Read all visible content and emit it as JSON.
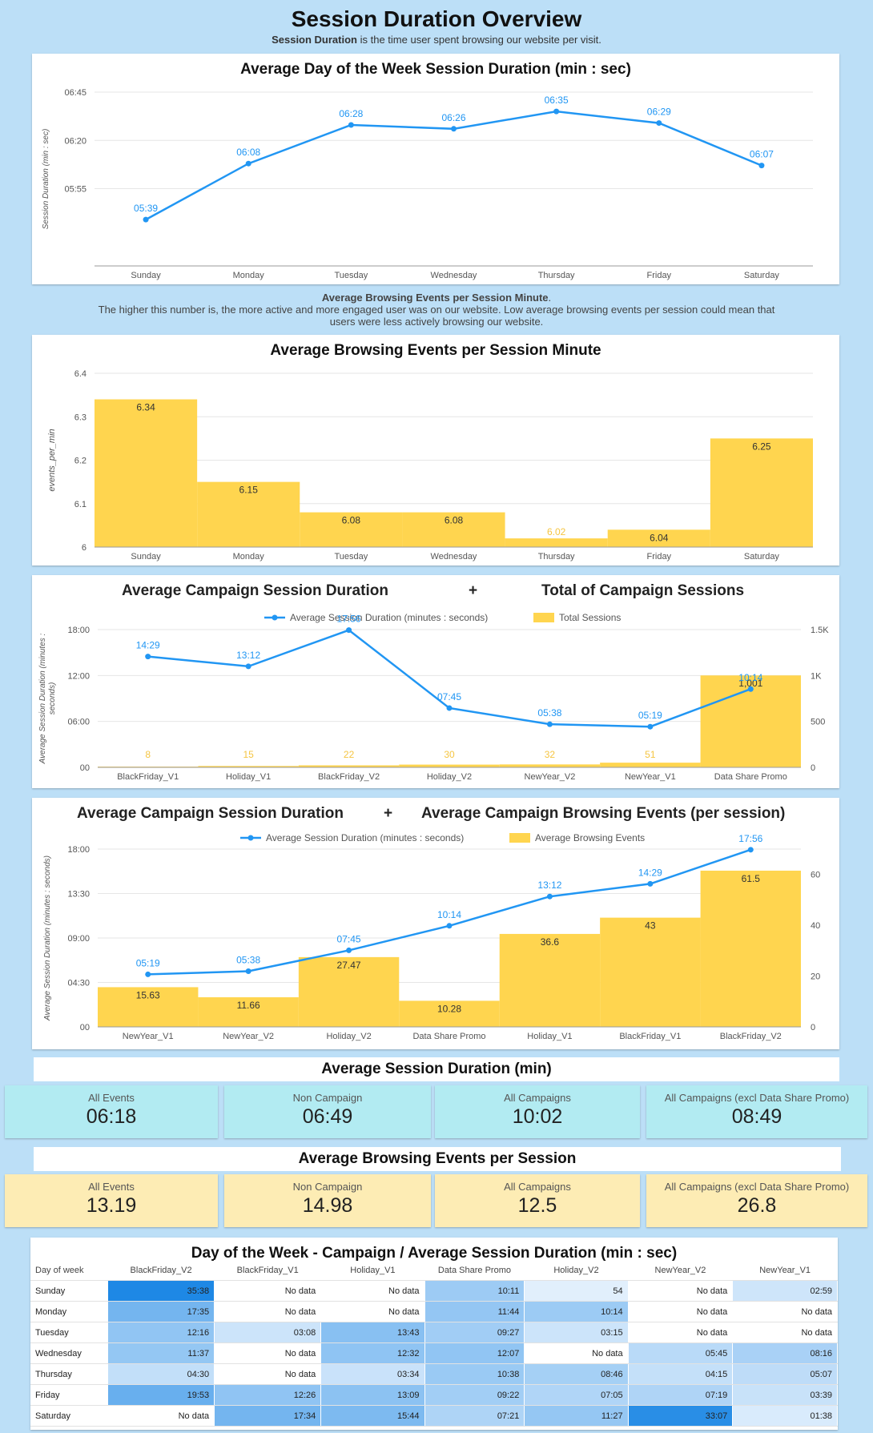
{
  "header": {
    "title": "Session Duration Overview",
    "subtitle_bold": "Session Duration",
    "subtitle_rest": " is the time user spent browsing our website per visit."
  },
  "charts": {
    "dow_duration": {
      "title": "Average Day of the Week Session Duration (min : sec)"
    },
    "events_per_min": {
      "title": "Average Browsing Events per Session Minute"
    },
    "campaign_sessions": {
      "title_left": "Average Campaign Session Duration",
      "plus": "+",
      "title_right": "Total of Campaign Sessions"
    },
    "campaign_events": {
      "title_left": "Average Campaign Session Duration",
      "plus": "+",
      "title_right": "Average Campaign Browsing Events (per session)"
    }
  },
  "note": {
    "bold": "Average Browsing Events per Session Minute",
    "line1": "The higher this number is, the more active and more engaged user was on our website. Low average browsing events per session could mean that",
    "line2": "users were less actively browsing our website."
  },
  "chart_data": [
    {
      "type": "line",
      "title": "Average Day of the Week Session Duration (min : sec)",
      "ylabel": "Session Duration (min : sec)",
      "categories": [
        "Sunday",
        "Monday",
        "Tuesday",
        "Wednesday",
        "Thursday",
        "Friday",
        "Saturday"
      ],
      "values_seconds": [
        339,
        368,
        388,
        386,
        395,
        389,
        367
      ],
      "labels": [
        "05:39",
        "06:08",
        "06:28",
        "06:26",
        "06:35",
        "06:29",
        "06:07"
      ],
      "ylim_seconds": [
        315,
        405
      ],
      "yticks": [
        "06:45",
        "06:20",
        "05:55"
      ],
      "color": "#2196f3"
    },
    {
      "type": "bar",
      "title": "Average Browsing Events per Session Minute",
      "ylabel": "events_per_min",
      "categories": [
        "Sunday",
        "Monday",
        "Tuesday",
        "Wednesday",
        "Thursday",
        "Friday",
        "Saturday"
      ],
      "values": [
        6.34,
        6.15,
        6.08,
        6.08,
        6.02,
        6.04,
        6.25
      ],
      "value_labels": [
        "6.34",
        "6.15",
        "6.08",
        "6.08",
        "6.02",
        "6.04",
        "6.25"
      ],
      "ylim": [
        6,
        6.4
      ],
      "yticks": [
        "6.4",
        "6.3",
        "6.2",
        "6.1",
        "6"
      ],
      "color": "#ffd54f"
    },
    {
      "type": "bar+line",
      "ylabel_left": "Average Session Duration (minutes : seconds)",
      "legend": [
        "Average Session Duration (minutes : seconds)",
        "Total Sessions"
      ],
      "categories": [
        "BlackFriday_V1",
        "Holiday_V1",
        "BlackFriday_V2",
        "Holiday_V2",
        "NewYear_V2",
        "NewYear_V1",
        "Data Share Promo"
      ],
      "line_seconds": [
        869,
        792,
        1076,
        465,
        338,
        319,
        614
      ],
      "line_labels": [
        "14:29",
        "13:12",
        "17:56",
        "07:45",
        "05:38",
        "05:19",
        "10:14"
      ],
      "bars": [
        8,
        15,
        22,
        30,
        32,
        51,
        1001
      ],
      "bar_labels": [
        "8",
        "15",
        "22",
        "30",
        "32",
        "51",
        "1,001"
      ],
      "left_ticks": [
        "18:00",
        "12:00",
        "06:00",
        "00"
      ],
      "right_ticks": [
        "1.5K",
        "1K",
        "500",
        "0"
      ],
      "left_max_seconds": 1080,
      "right_max": 1500
    },
    {
      "type": "bar+line",
      "ylabel_left": "Average Session Duration (minutes : seconds)",
      "legend": [
        "Average Session Duration (minutes : seconds)",
        "Average Browsing Events"
      ],
      "categories": [
        "NewYear_V1",
        "NewYear_V2",
        "Holiday_V2",
        "Data Share Promo",
        "Holiday_V1",
        "BlackFriday_V1",
        "BlackFriday_V2"
      ],
      "line_seconds": [
        319,
        338,
        465,
        614,
        792,
        869,
        1076
      ],
      "line_labels": [
        "05:19",
        "05:38",
        "07:45",
        "10:14",
        "13:12",
        "14:29",
        "17:56"
      ],
      "bars": [
        15.63,
        11.66,
        27.47,
        10.28,
        36.6,
        43,
        61.5
      ],
      "bar_labels": [
        "15.63",
        "11.66",
        "27.47",
        "10.28",
        "36.6",
        "43",
        "61.5"
      ],
      "left_ticks": [
        "18:00",
        "13:30",
        "09:00",
        "04:30",
        "00"
      ],
      "right_ticks": [
        "60",
        "40",
        "20",
        "0"
      ],
      "left_max_seconds": 1080,
      "right_max": 70
    }
  ],
  "kpi_duration": {
    "title": "Average Session Duration (min)",
    "items": [
      {
        "label": "All Events",
        "value": "06:18"
      },
      {
        "label": "Non Campaign",
        "value": "06:49"
      },
      {
        "label": "All Campaigns",
        "value": "10:02"
      },
      {
        "label": "All Campaigns (excl Data Share Promo)",
        "value": "08:49"
      }
    ],
    "color": "#b2ebf2"
  },
  "kpi_events": {
    "title": "Average Browsing Events per Session",
    "items": [
      {
        "label": "All Events",
        "value": "13.19"
      },
      {
        "label": "Non Campaign",
        "value": "14.98"
      },
      {
        "label": "All Campaigns",
        "value": "12.5"
      },
      {
        "label": "All Campaigns (excl Data Share Promo)",
        "value": "26.8"
      }
    ],
    "color": "#fdecb4"
  },
  "heatmap": {
    "title": "Day of the Week - Campaign / Average Session Duration (min : sec)",
    "columns": [
      "Day of week",
      "BlackFriday_V2",
      "BlackFriday_V1",
      "Holiday_V1",
      "Data Share Promo",
      "Holiday_V2",
      "NewYear_V2",
      "NewYear_V1"
    ],
    "rows": [
      [
        "Sunday",
        "35:38",
        "No data",
        "No data",
        "10:11",
        "54",
        "No data",
        "02:59"
      ],
      [
        "Monday",
        "17:35",
        "No data",
        "No data",
        "11:44",
        "10:14",
        "No data",
        "No data"
      ],
      [
        "Tuesday",
        "12:16",
        "03:08",
        "13:43",
        "09:27",
        "03:15",
        "No data",
        "No data"
      ],
      [
        "Wednesday",
        "11:37",
        "No data",
        "12:32",
        "12:07",
        "No data",
        "05:45",
        "08:16"
      ],
      [
        "Thursday",
        "04:30",
        "No data",
        "03:34",
        "10:38",
        "08:46",
        "04:15",
        "05:07"
      ],
      [
        "Friday",
        "19:53",
        "12:26",
        "13:09",
        "09:22",
        "07:05",
        "07:19",
        "03:39"
      ],
      [
        "Saturday",
        "No data",
        "17:34",
        "15:44",
        "07:21",
        "11:27",
        "33:07",
        "01:38"
      ]
    ]
  }
}
